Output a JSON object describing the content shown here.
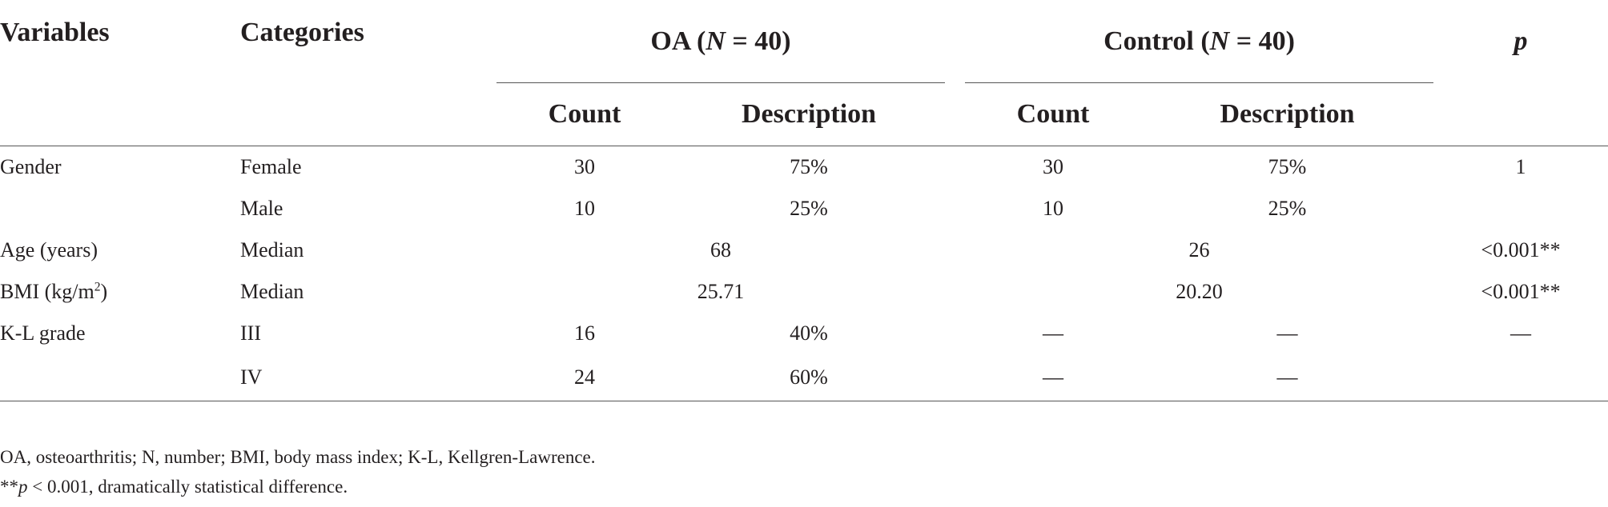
{
  "table": {
    "headers": {
      "variables": "Variables",
      "categories": "Categories",
      "oa_group": {
        "label": "OA",
        "n_label": "N",
        "n_value": "40"
      },
      "control_group": {
        "label": "Control",
        "n_label": "N",
        "n_value": "40"
      },
      "p": "p",
      "count": "Count",
      "description": "Description"
    },
    "rows": [
      {
        "variable": "Gender",
        "category": "Female",
        "oa_count": "30",
        "oa_desc": "75%",
        "ct_count": "30",
        "ct_desc": "75%",
        "p": "1"
      },
      {
        "variable": "",
        "category": "Male",
        "oa_count": "10",
        "oa_desc": "25%",
        "ct_count": "10",
        "ct_desc": "25%",
        "p": ""
      },
      {
        "variable": "Age (years)",
        "category": "Median",
        "oa_merged": "68",
        "ct_merged": "26",
        "p": "<0.001**"
      },
      {
        "variable_main": "BMI (kg/m",
        "variable_sup": "2",
        "variable_tail": ")",
        "category": "Median",
        "oa_merged": "25.71",
        "ct_merged": "20.20",
        "p": "<0.001**"
      },
      {
        "variable": "K-L grade",
        "category": "III",
        "oa_count": "16",
        "oa_desc": "40%",
        "ct_count": "—",
        "ct_desc": "—",
        "p": "—"
      },
      {
        "variable": "",
        "category": "IV",
        "oa_count": "24",
        "oa_desc": "60%",
        "ct_count": "—",
        "ct_desc": "—",
        "p": ""
      }
    ]
  },
  "notes": {
    "abbreviations": "OA, osteoarthritis; N, number; BMI, body mass index; K-L, Kellgren-Lawrence.",
    "significance_marker": "**",
    "significance_p": "p",
    "significance_text": " < 0.001, dramatically statistical difference."
  }
}
